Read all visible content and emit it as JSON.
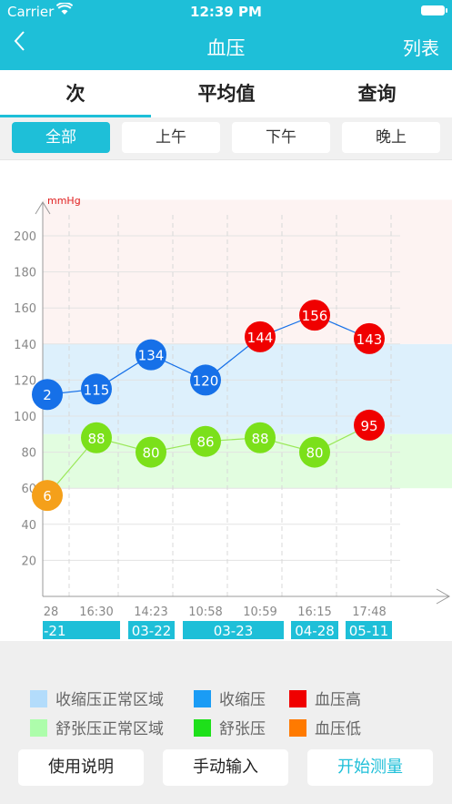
{
  "status": {
    "carrier": "Carrier",
    "time": "12:39 PM"
  },
  "nav": {
    "back_icon": "chevron-left-icon",
    "title": "血压",
    "right": "列表"
  },
  "tabs": [
    {
      "label": "次"
    },
    {
      "label": "平均值"
    },
    {
      "label": "查询"
    }
  ],
  "segments": [
    {
      "label": "全部"
    },
    {
      "label": "上午"
    },
    {
      "label": "下午"
    },
    {
      "label": "晚上"
    }
  ],
  "colors": {
    "accent": "#1ebfd8",
    "systolic": "#1670e8",
    "diastolic": "#7be01a",
    "high": "#f00000",
    "low": "#f5a01a",
    "systolic_zone": "#ddf0fc",
    "diastolic_zone": "#e2fde0",
    "high_zone": "#fdf3f2"
  },
  "chart_data": {
    "type": "line",
    "ylabel": "mmHg",
    "ylim": [
      0,
      220
    ],
    "yticks": [
      20,
      40,
      60,
      80,
      100,
      120,
      140,
      160,
      180,
      200
    ],
    "xticks": [
      "28",
      "16:30",
      "14:23",
      "10:58",
      "10:59",
      "16:15",
      "17:48"
    ],
    "date_groups": [
      "-21",
      "03-22",
      "03-23",
      "04-28",
      "05-11"
    ],
    "zones": [
      {
        "name": "收缩压正常区域",
        "from": 90,
        "to": 140
      },
      {
        "name": "舒张压正常区域",
        "from": 60,
        "to": 90
      },
      {
        "name": "high",
        "from": 140,
        "to": 220
      }
    ],
    "series": [
      {
        "name": "收缩压",
        "points": [
          {
            "x": "28",
            "y": 112,
            "label": "2",
            "status": "normal"
          },
          {
            "x": "16:30",
            "y": 115,
            "label": "115",
            "status": "normal"
          },
          {
            "x": "14:23",
            "y": 134,
            "label": "134",
            "status": "normal"
          },
          {
            "x": "10:58",
            "y": 120,
            "label": "120",
            "status": "normal"
          },
          {
            "x": "10:59",
            "y": 144,
            "label": "144",
            "status": "high"
          },
          {
            "x": "16:15",
            "y": 156,
            "label": "156",
            "status": "high"
          },
          {
            "x": "17:48",
            "y": 143,
            "label": "143",
            "status": "high"
          }
        ]
      },
      {
        "name": "舒张压",
        "points": [
          {
            "x": "28",
            "y": 56,
            "label": "6",
            "status": "low"
          },
          {
            "x": "16:30",
            "y": 88,
            "label": "88",
            "status": "normal"
          },
          {
            "x": "14:23",
            "y": 80,
            "label": "80",
            "status": "normal"
          },
          {
            "x": "10:58",
            "y": 86,
            "label": "86",
            "status": "normal"
          },
          {
            "x": "10:59",
            "y": 88,
            "label": "88",
            "status": "normal"
          },
          {
            "x": "16:15",
            "y": 80,
            "label": "80",
            "status": "normal"
          },
          {
            "x": "17:48",
            "y": 95,
            "label": "95",
            "status": "high"
          }
        ]
      }
    ]
  },
  "legend": [
    {
      "label": "收缩压正常区域",
      "color": "#b3dcfb"
    },
    {
      "label": "收缩压",
      "color": "#1a9cf5"
    },
    {
      "label": "血压高",
      "color": "#f00000"
    },
    {
      "label": "舒张压正常区域",
      "color": "#adfdab"
    },
    {
      "label": "舒张压",
      "color": "#1ee01a"
    },
    {
      "label": "血压低",
      "color": "#ff7a00"
    }
  ],
  "buttons": {
    "manual": "使用说明",
    "input": "手动输入",
    "start": "开始测量"
  }
}
